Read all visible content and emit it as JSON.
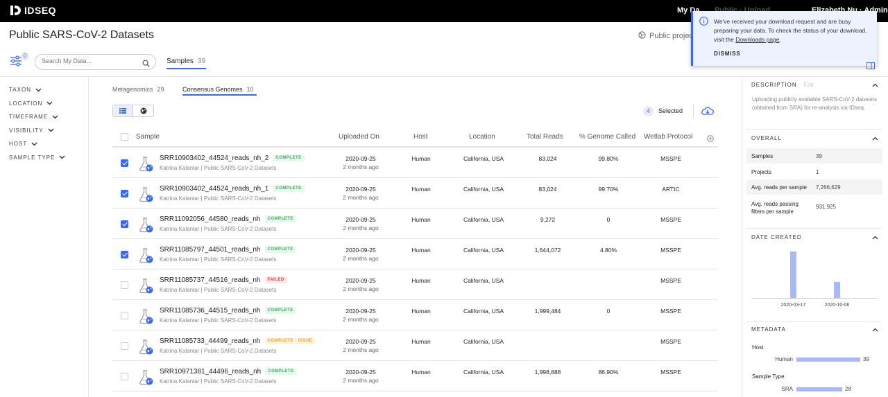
{
  "app": {
    "brand": "IDSEQ"
  },
  "topnav": {
    "my_data": "My Da",
    "faded_center": "Public · Upload",
    "user": "Elizabeth Nu · Admin"
  },
  "notification": {
    "message_pre": "We've received your download request and are busy preparing your data. To check the status of your download, visit the ",
    "link": "Downloads page",
    "message_post": ".",
    "dismiss": "DISMISS"
  },
  "page": {
    "title": "Public SARS-CoV-2 Datasets",
    "public_project": "Public project"
  },
  "toolbar": {
    "filter_count": "0",
    "search_placeholder": "Search My Data..."
  },
  "main_tab": {
    "label": "Samples",
    "count": "39"
  },
  "filters": [
    "TAXON",
    "LOCATION",
    "TIMEFRAME",
    "VISIBILITY",
    "HOST",
    "SAMPLE TYPE"
  ],
  "subtabs": [
    {
      "label": "Metagenomics",
      "count": "29"
    },
    {
      "label": "Consensus Genomes",
      "count": "10"
    }
  ],
  "selection": {
    "count": "4",
    "label": "Selected"
  },
  "table": {
    "columns": [
      "Sample",
      "Uploaded On",
      "Host",
      "Location",
      "Total Reads",
      "% Genome Called",
      "Wetlab Protocol"
    ],
    "rows": [
      {
        "checked": true,
        "name": "SRR10903402_44524_reads_nh_2",
        "status": "COMPLETE",
        "status_type": "complete",
        "sub": "Katrina Kalantar  |  Public SARS-CoV-2 Datasets",
        "date": "2020-09-25",
        "ago": "2 months ago",
        "host": "Human",
        "location": "California, USA",
        "reads": "83,024",
        "genome": "99.80%",
        "protocol": "MSSPE"
      },
      {
        "checked": true,
        "name": "SRR10903402_44524_reads_nh_1",
        "status": "COMPLETE",
        "status_type": "complete",
        "sub": "Katrina Kalantar  |  Public SARS-CoV-2 Datasets",
        "date": "2020-09-25",
        "ago": "2 months ago",
        "host": "Human",
        "location": "California, USA",
        "reads": "83,024",
        "genome": "99.70%",
        "protocol": "ARTIC"
      },
      {
        "checked": true,
        "name": "SRR11092056_44580_reads_nh",
        "status": "COMPLETE",
        "status_type": "complete",
        "sub": "Katrina Kalantar  |  Public SARS-CoV-2 Datasets",
        "date": "2020-09-25",
        "ago": "2 months ago",
        "host": "Human",
        "location": "California, USA",
        "reads": "9,272",
        "genome": "0",
        "protocol": "MSSPE"
      },
      {
        "checked": true,
        "name": "SRR11085797_44501_reads_nh",
        "status": "COMPLETE",
        "status_type": "complete",
        "sub": "Katrina Kalantar  |  Public SARS-CoV-2 Datasets",
        "date": "2020-09-25",
        "ago": "2 months ago",
        "host": "Human",
        "location": "California, USA",
        "reads": "1,644,072",
        "genome": "4.80%",
        "protocol": "MSSPE"
      },
      {
        "checked": false,
        "name": "SRR11085737_44516_reads_nh",
        "status": "FAILED",
        "status_type": "failed",
        "sub": "Katrina Kalantar  |  Public SARS-CoV-2 Datasets",
        "date": "2020-09-25",
        "ago": "2 months ago",
        "host": "Human",
        "location": "California, USA",
        "reads": "",
        "genome": "",
        "protocol": "MSSPE"
      },
      {
        "checked": false,
        "name": "SRR11085736_44515_reads_nh",
        "status": "COMPLETE",
        "status_type": "complete",
        "sub": "Katrina Kalantar  |  Public SARS-CoV-2 Datasets",
        "date": "2020-09-25",
        "ago": "2 months ago",
        "host": "Human",
        "location": "California, USA",
        "reads": "1,999,484",
        "genome": "0",
        "protocol": "MSSPE"
      },
      {
        "checked": false,
        "name": "SRR11085733_44499_reads_nh",
        "status": "COMPLETE - ISSUE",
        "status_type": "issue",
        "sub": "Katrina Kalantar  |  Public SARS-CoV-2 Datasets",
        "date": "2020-09-25",
        "ago": "2 months ago",
        "host": "Human",
        "location": "California, USA",
        "reads": "",
        "genome": "",
        "protocol": "MSSPE"
      },
      {
        "checked": false,
        "name": "SRR10971381_44496_reads_nh",
        "status": "COMPLETE",
        "status_type": "complete",
        "sub": "Katrina Kalantar  |  Public SARS-CoV-2 Datasets",
        "date": "2020-09-25",
        "ago": "2 months ago",
        "host": "Human",
        "location": "California, USA",
        "reads": "1,998,888",
        "genome": "86.90%",
        "protocol": "MSSPE"
      }
    ]
  },
  "right_panel": {
    "description": {
      "title": "DESCRIPTION",
      "edit": "Edit",
      "text": "Uploading publicly available SARS-CoV-2 datasets (obtained from SRA) for re-analysis via IDseq."
    },
    "overall": {
      "title": "OVERALL",
      "rows": [
        {
          "label": "Samples",
          "value": "39"
        },
        {
          "label": "Projects",
          "value": "1"
        },
        {
          "label": "Avg. reads per sample",
          "value": "7,266,629"
        },
        {
          "label": "Avg. reads passing filters per sample",
          "value": "931,925"
        }
      ]
    },
    "date_created": {
      "title": "DATE CREATED",
      "tick_labels": [
        "2020-03-17",
        "2020-10-06"
      ],
      "bars": [
        {
          "date": "2020-03-17",
          "count": 29
        },
        {
          "date": "2020-10-06",
          "count": 10
        }
      ]
    },
    "metadata": {
      "title": "METADATA",
      "host": {
        "label": "Host",
        "item": "Human",
        "count": "39",
        "fraction": 1.0
      },
      "sample_type": {
        "label": "Sample Type",
        "item": "SRA",
        "count": "28",
        "fraction": 0.72
      }
    }
  },
  "colors": {
    "accent": "#3867fa",
    "topbar": "#000000",
    "bar": "#a9b9f5",
    "complete": "#3fad5a",
    "failed": "#db3b3b",
    "issue": "#f0a229"
  }
}
